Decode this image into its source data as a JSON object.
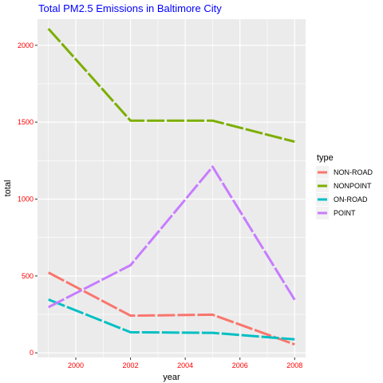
{
  "chart_data": {
    "type": "line",
    "title": "Total PM2.5 Emissions in Baltimore City",
    "xlabel": "year",
    "ylabel": "total",
    "x": [
      1999,
      2002,
      2005,
      2008
    ],
    "xlim": [
      1998.6,
      2008.4
    ],
    "ylim": [
      -30,
      2170
    ],
    "x_ticks": [
      2000,
      2002,
      2004,
      2006,
      2008
    ],
    "x_minor_ticks": [
      1999,
      2001,
      2003,
      2005,
      2007
    ],
    "y_ticks": [
      0,
      500,
      1000,
      1500,
      2000
    ],
    "y_minor_ticks": [
      250,
      750,
      1250,
      1750
    ],
    "x_tick_labels": [
      "2000",
      "2002",
      "2004",
      "2006",
      "2008"
    ],
    "y_tick_labels": [
      "0",
      "500",
      "1000",
      "1500",
      "2000"
    ],
    "grid": true,
    "line_style": "dashed",
    "legend": {
      "title": "type",
      "placement": "right"
    },
    "series": [
      {
        "name": "NON-ROAD",
        "color": "#F8766D",
        "values": [
          522,
          242,
          248,
          55
        ]
      },
      {
        "name": "NONPOINT",
        "color": "#7CAE00",
        "values": [
          2108,
          1510,
          1510,
          1373
        ]
      },
      {
        "name": "ON-ROAD",
        "color": "#00BFC4",
        "values": [
          347,
          134,
          130,
          88
        ]
      },
      {
        "name": "POINT",
        "color": "#C77CFF",
        "values": [
          297,
          570,
          1210,
          345
        ]
      }
    ]
  }
}
